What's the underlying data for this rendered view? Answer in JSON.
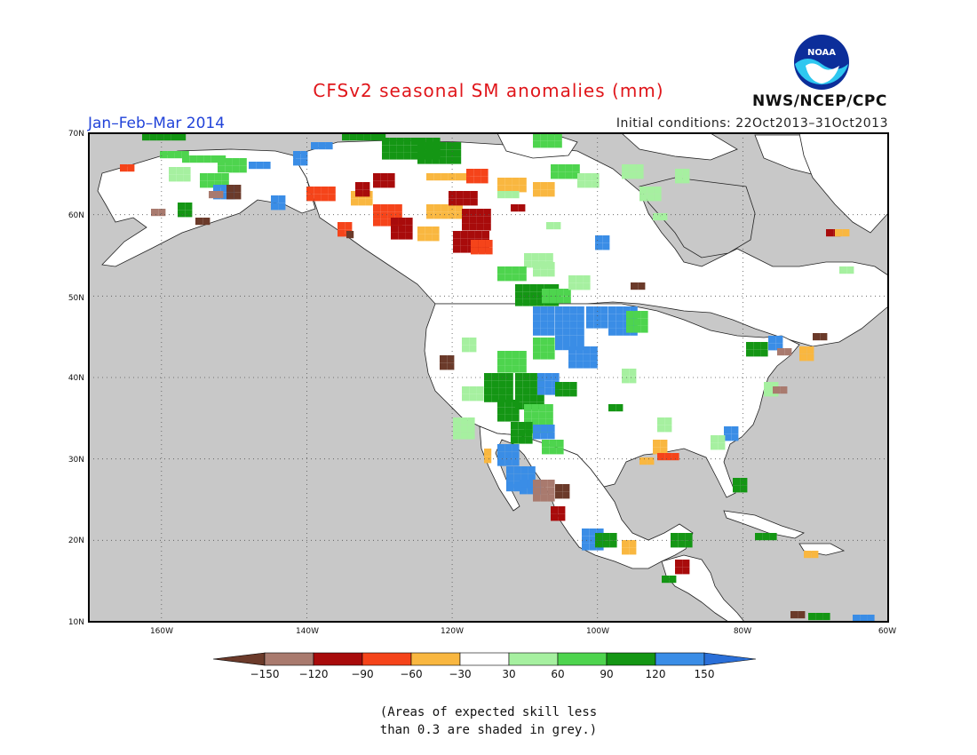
{
  "header": {
    "title": "CFSv2 seasonal SM anomalies (mm)",
    "season": "Jan–Feb–Mar 2014",
    "initial_conditions": "Initial conditions: 22Oct2013–31Oct2013",
    "agency": "NWS/NCEP/CPC",
    "logo_text": "NOAA"
  },
  "map": {
    "lat_labels": [
      "70N",
      "60N",
      "50N",
      "40N",
      "30N",
      "20N",
      "10N"
    ],
    "lon_labels": [
      "160W",
      "140W",
      "120W",
      "100W",
      "80W",
      "60W"
    ],
    "lat_values": [
      70,
      60,
      50,
      40,
      30,
      20,
      10
    ],
    "lon_values": [
      -160,
      -140,
      -120,
      -100,
      -80,
      -60
    ],
    "extent": {
      "lon_min": -170,
      "lon_max": -60,
      "lat_min": 10,
      "lat_max": 70
    },
    "ocean_color": "#c8c8c8",
    "land_color": "#ffffff",
    "grid": "dotted"
  },
  "colorbar": {
    "boundaries": [
      "−150",
      "−120",
      "−90",
      "−60",
      "−30",
      "30",
      "60",
      "90",
      "120",
      "150"
    ],
    "colors": [
      "#6b3a2a",
      "#a97a6e",
      "#a80b0b",
      "#f5441a",
      "#f9b740",
      "#ffffff",
      "#a6f0a0",
      "#4ed44e",
      "#149614",
      "#3a8de6",
      "#2a6fd8"
    ]
  },
  "note": {
    "line1": "(Areas of expected skill less",
    "line2": "than 0.3 are shaded in grey.)"
  }
}
